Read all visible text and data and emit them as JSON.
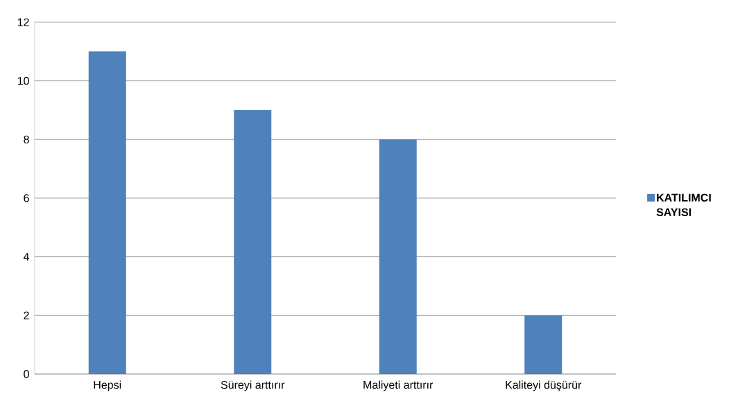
{
  "chart_data": {
    "type": "bar",
    "categories": [
      "Hepsi",
      "Süreyi arttırır",
      "Maliyeti arttırır",
      "Kaliteyi düşürür"
    ],
    "series": [
      {
        "name": "KATILIMCI SAYISI",
        "color": "#4f81bd",
        "values": [
          11,
          9,
          8,
          2
        ]
      }
    ],
    "ylim": [
      0,
      12
    ],
    "yticks": [
      0,
      2,
      4,
      6,
      8,
      10,
      12
    ],
    "grid": "y",
    "legend": "right"
  }
}
